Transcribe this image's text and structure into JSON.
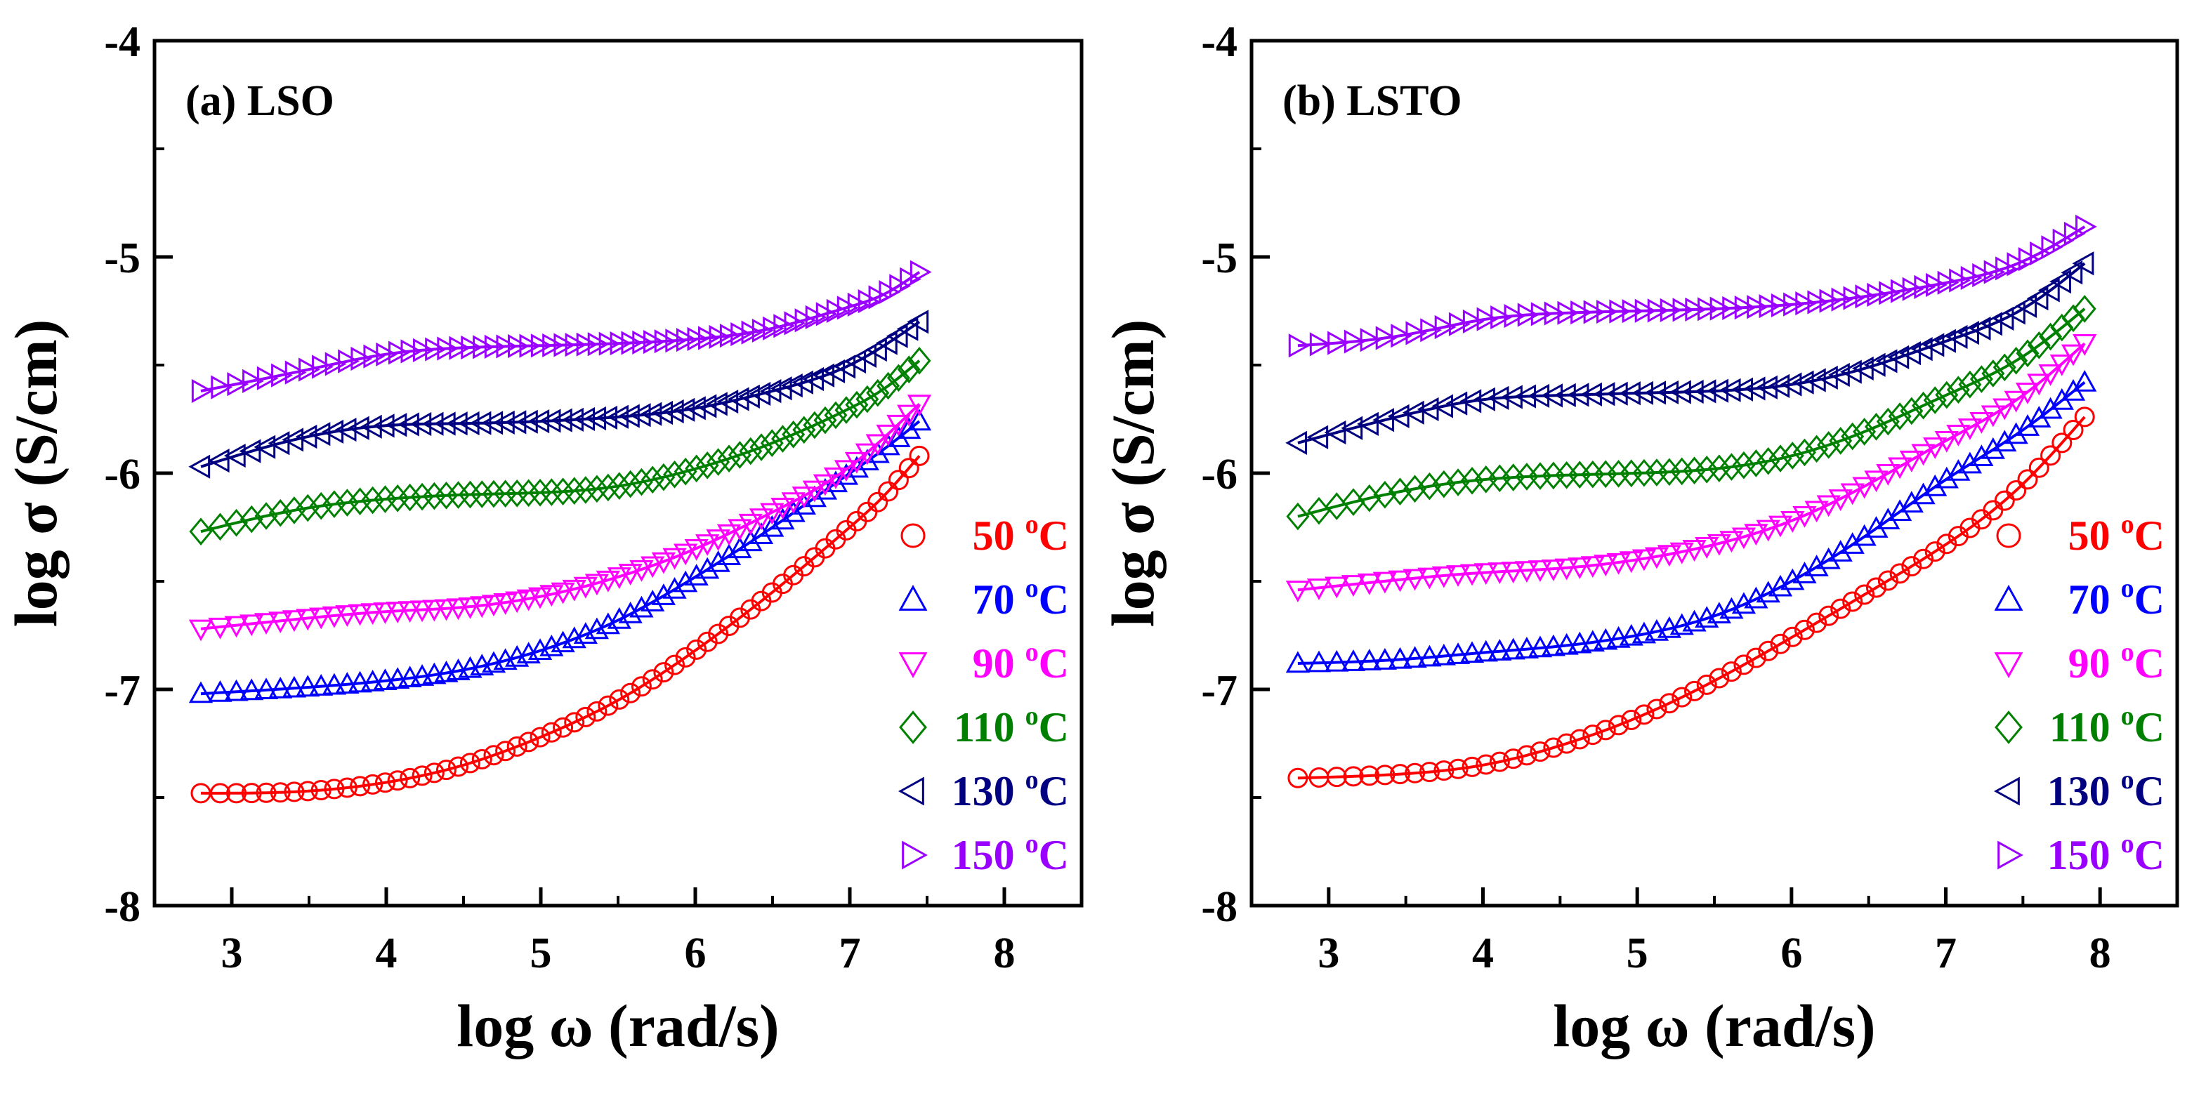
{
  "figure": {
    "colors": {
      "50": "#ff0000",
      "70": "#0000ff",
      "90": "#ff00ff",
      "110": "#008000",
      "130": "#000080",
      "150": "#9900ff"
    }
  },
  "chart_data": [
    {
      "type": "scatter",
      "panel_label": "(a) LSO",
      "xlabel": "log ω (rad/s)",
      "ylabel": "log σ (S/cm)",
      "xlim": [
        2.5,
        8.5
      ],
      "ylim": [
        -8,
        -4
      ],
      "x_ticks": [
        "3",
        "4",
        "5",
        "6",
        "7",
        "8"
      ],
      "y_ticks": [
        "-4",
        "-5",
        "-6",
        "-7",
        "-8"
      ],
      "legend_position": "bottom-right",
      "x_range": [
        2.8,
        7.45
      ],
      "series": [
        {
          "temp": "50",
          "name": "50 °C",
          "marker": "circle",
          "points": [
            [
              2.8,
              -7.48
            ],
            [
              3.5,
              -7.47
            ],
            [
              4.0,
              -7.43
            ],
            [
              4.5,
              -7.35
            ],
            [
              5.0,
              -7.22
            ],
            [
              5.5,
              -7.05
            ],
            [
              6.0,
              -6.82
            ],
            [
              6.5,
              -6.55
            ],
            [
              7.0,
              -6.25
            ],
            [
              7.2,
              -6.12
            ],
            [
              7.45,
              -5.92
            ]
          ]
        },
        {
          "temp": "70",
          "name": "70 °C",
          "marker": "triangle-up",
          "points": [
            [
              2.8,
              -7.02
            ],
            [
              3.5,
              -6.99
            ],
            [
              4.0,
              -6.96
            ],
            [
              4.5,
              -6.91
            ],
            [
              5.0,
              -6.82
            ],
            [
              5.5,
              -6.68
            ],
            [
              6.0,
              -6.48
            ],
            [
              6.5,
              -6.25
            ],
            [
              7.0,
              -6.0
            ],
            [
              7.2,
              -5.9
            ],
            [
              7.45,
              -5.76
            ]
          ]
        },
        {
          "temp": "90",
          "name": "90 °C",
          "marker": "triangle-down",
          "points": [
            [
              2.8,
              -6.72
            ],
            [
              3.5,
              -6.67
            ],
            [
              4.0,
              -6.64
            ],
            [
              4.5,
              -6.62
            ],
            [
              5.0,
              -6.57
            ],
            [
              5.5,
              -6.48
            ],
            [
              6.0,
              -6.35
            ],
            [
              6.5,
              -6.18
            ],
            [
              7.0,
              -5.97
            ],
            [
              7.2,
              -5.85
            ],
            [
              7.45,
              -5.68
            ]
          ]
        },
        {
          "temp": "110",
          "name": "110 °C",
          "marker": "diamond",
          "points": [
            [
              2.8,
              -6.27
            ],
            [
              3.5,
              -6.16
            ],
            [
              4.0,
              -6.12
            ],
            [
              4.5,
              -6.1
            ],
            [
              5.0,
              -6.09
            ],
            [
              5.5,
              -6.06
            ],
            [
              6.0,
              -5.98
            ],
            [
              6.5,
              -5.86
            ],
            [
              7.0,
              -5.7
            ],
            [
              7.2,
              -5.62
            ],
            [
              7.45,
              -5.48
            ]
          ]
        },
        {
          "temp": "130",
          "name": "130 °C",
          "marker": "triangle-left",
          "points": [
            [
              2.8,
              -5.97
            ],
            [
              3.5,
              -5.83
            ],
            [
              4.0,
              -5.78
            ],
            [
              4.5,
              -5.77
            ],
            [
              5.0,
              -5.76
            ],
            [
              5.5,
              -5.74
            ],
            [
              6.0,
              -5.7
            ],
            [
              6.5,
              -5.62
            ],
            [
              7.0,
              -5.5
            ],
            [
              7.2,
              -5.42
            ],
            [
              7.45,
              -5.3
            ]
          ]
        },
        {
          "temp": "150",
          "name": "150 °C",
          "marker": "triangle-right",
          "points": [
            [
              2.8,
              -5.62
            ],
            [
              3.5,
              -5.52
            ],
            [
              4.0,
              -5.45
            ],
            [
              4.5,
              -5.42
            ],
            [
              5.0,
              -5.41
            ],
            [
              5.5,
              -5.4
            ],
            [
              6.0,
              -5.38
            ],
            [
              6.5,
              -5.33
            ],
            [
              7.0,
              -5.23
            ],
            [
              7.2,
              -5.18
            ],
            [
              7.45,
              -5.07
            ]
          ]
        }
      ]
    },
    {
      "type": "scatter",
      "panel_label": "(b) LSTO",
      "xlabel": "log ω (rad/s)",
      "ylabel": "log σ (S/cm)",
      "xlim": [
        2.5,
        8.5
      ],
      "ylim": [
        -8,
        -4
      ],
      "x_ticks": [
        "3",
        "4",
        "5",
        "6",
        "7",
        "8"
      ],
      "y_ticks": [
        "-4",
        "-5",
        "-6",
        "-7",
        "-8"
      ],
      "legend_position": "bottom-right",
      "x_range": [
        2.8,
        7.9
      ],
      "series": [
        {
          "temp": "50",
          "name": "50 °C",
          "marker": "circle",
          "points": [
            [
              2.8,
              -7.41
            ],
            [
              3.5,
              -7.39
            ],
            [
              4.0,
              -7.35
            ],
            [
              4.5,
              -7.26
            ],
            [
              5.0,
              -7.13
            ],
            [
              5.5,
              -6.96
            ],
            [
              6.0,
              -6.76
            ],
            [
              6.5,
              -6.55
            ],
            [
              7.0,
              -6.33
            ],
            [
              7.5,
              -6.05
            ],
            [
              7.9,
              -5.74
            ]
          ]
        },
        {
          "temp": "70",
          "name": "70 °C",
          "marker": "triangle-up",
          "points": [
            [
              2.8,
              -6.88
            ],
            [
              3.5,
              -6.86
            ],
            [
              4.0,
              -6.83
            ],
            [
              4.5,
              -6.8
            ],
            [
              5.0,
              -6.75
            ],
            [
              5.5,
              -6.66
            ],
            [
              6.0,
              -6.5
            ],
            [
              6.5,
              -6.28
            ],
            [
              7.0,
              -6.03
            ],
            [
              7.5,
              -5.8
            ],
            [
              7.9,
              -5.58
            ]
          ]
        },
        {
          "temp": "90",
          "name": "90 °C",
          "marker": "triangle-down",
          "points": [
            [
              2.8,
              -6.54
            ],
            [
              3.5,
              -6.49
            ],
            [
              4.0,
              -6.46
            ],
            [
              4.5,
              -6.44
            ],
            [
              5.0,
              -6.4
            ],
            [
              5.5,
              -6.33
            ],
            [
              6.0,
              -6.22
            ],
            [
              6.5,
              -6.05
            ],
            [
              7.0,
              -5.85
            ],
            [
              7.5,
              -5.64
            ],
            [
              7.9,
              -5.4
            ]
          ]
        },
        {
          "temp": "110",
          "name": "110 °C",
          "marker": "diamond",
          "points": [
            [
              2.8,
              -6.2
            ],
            [
              3.5,
              -6.08
            ],
            [
              4.0,
              -6.03
            ],
            [
              4.5,
              -6.01
            ],
            [
              5.0,
              -6.0
            ],
            [
              5.5,
              -5.98
            ],
            [
              6.0,
              -5.92
            ],
            [
              6.5,
              -5.8
            ],
            [
              7.0,
              -5.64
            ],
            [
              7.5,
              -5.46
            ],
            [
              7.9,
              -5.24
            ]
          ]
        },
        {
          "temp": "130",
          "name": "130 °C",
          "marker": "triangle-left",
          "points": [
            [
              2.8,
              -5.86
            ],
            [
              3.5,
              -5.73
            ],
            [
              4.0,
              -5.66
            ],
            [
              4.5,
              -5.64
            ],
            [
              5.0,
              -5.63
            ],
            [
              5.5,
              -5.62
            ],
            [
              6.0,
              -5.59
            ],
            [
              6.5,
              -5.51
            ],
            [
              7.0,
              -5.39
            ],
            [
              7.5,
              -5.24
            ],
            [
              7.9,
              -5.03
            ]
          ]
        },
        {
          "temp": "150",
          "name": "150 °C",
          "marker": "triangle-right",
          "points": [
            [
              2.8,
              -5.41
            ],
            [
              3.5,
              -5.36
            ],
            [
              4.0,
              -5.29
            ],
            [
              4.5,
              -5.26
            ],
            [
              5.0,
              -5.25
            ],
            [
              5.5,
              -5.24
            ],
            [
              6.0,
              -5.22
            ],
            [
              6.5,
              -5.18
            ],
            [
              7.0,
              -5.12
            ],
            [
              7.5,
              -5.02
            ],
            [
              7.9,
              -4.86
            ]
          ]
        }
      ]
    }
  ]
}
